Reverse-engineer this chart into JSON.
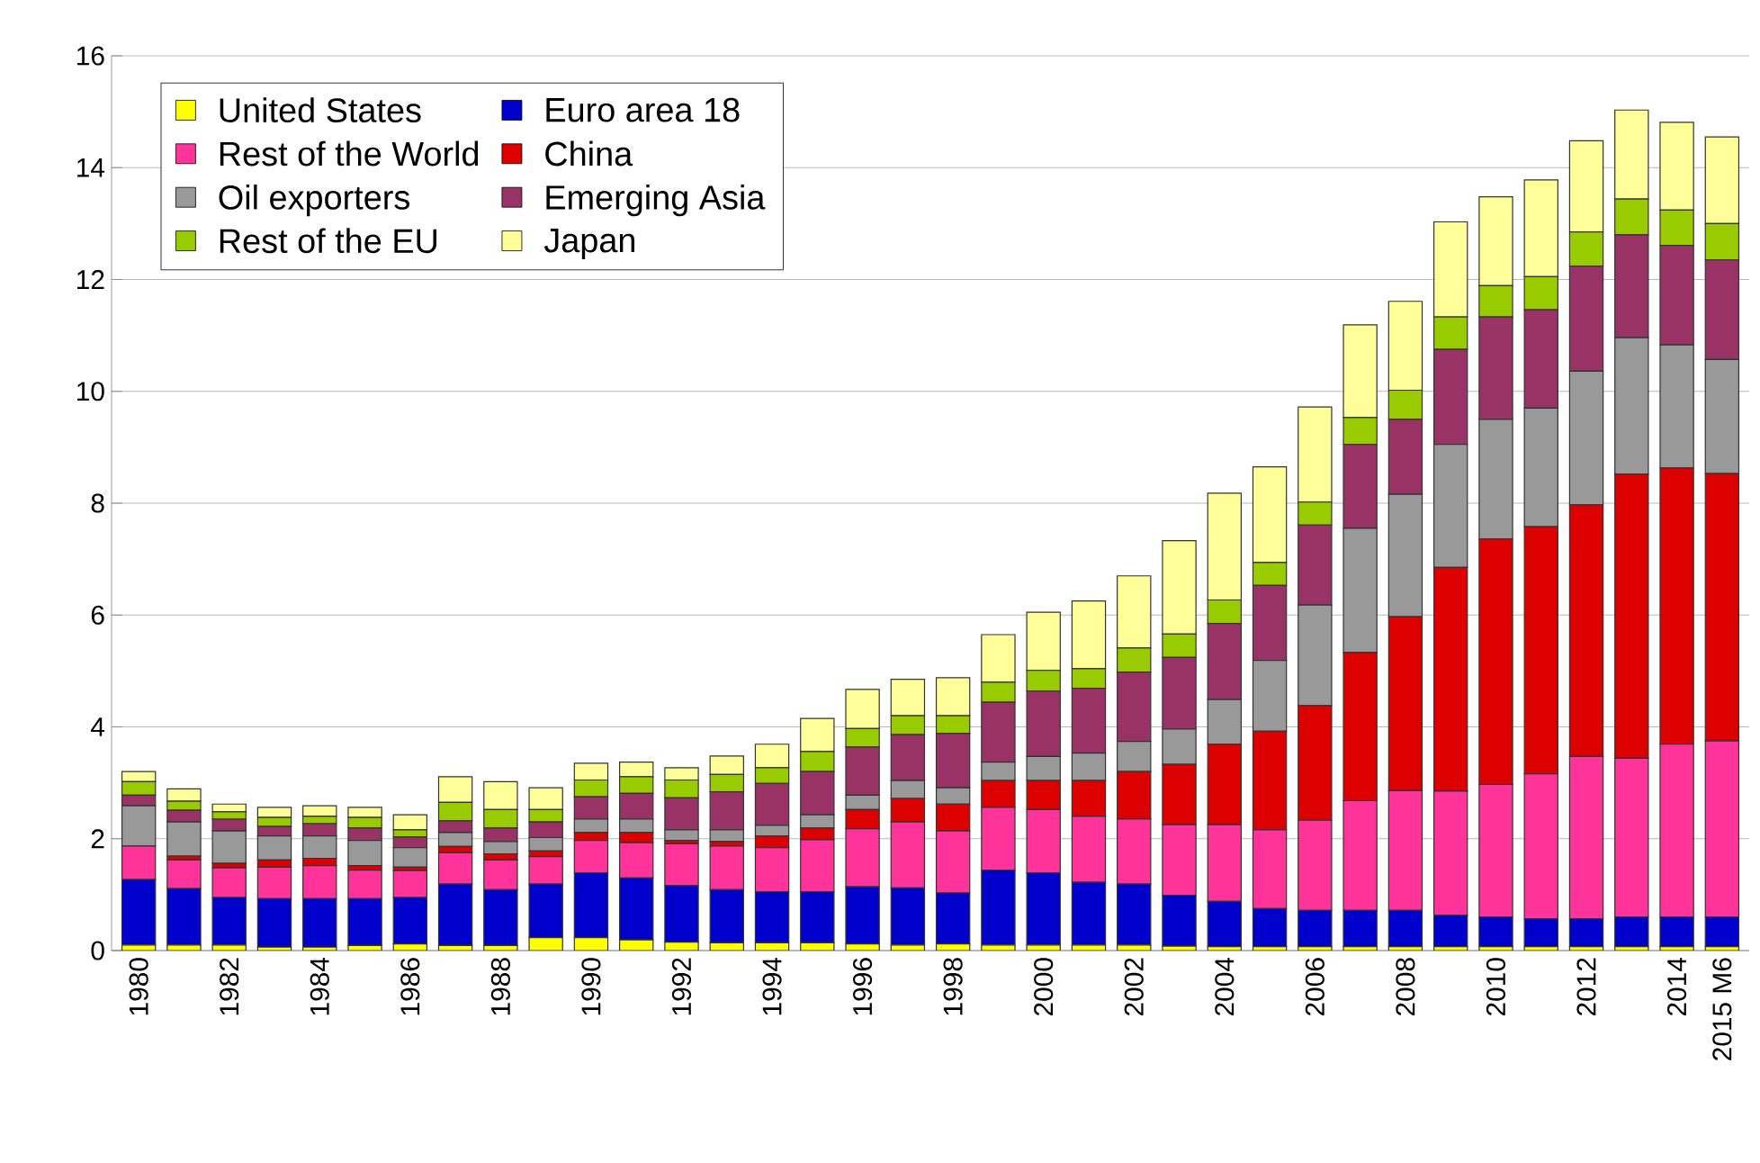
{
  "chart_data": {
    "type": "bar",
    "stacked": true,
    "grid": "y",
    "legend": "top left",
    "categories": [
      "1980",
      null,
      "1982",
      null,
      "1984",
      null,
      "1986",
      null,
      "1988",
      null,
      "1990",
      null,
      "1992",
      null,
      "1994",
      null,
      "1996",
      null,
      "1998",
      null,
      "2000",
      null,
      "2002",
      null,
      "2004",
      null,
      "2006",
      null,
      "2008",
      null,
      "2010",
      null,
      "2012",
      null,
      "2014",
      "2015 M6"
    ],
    "ylim": [
      0,
      16
    ],
    "yticks": [
      0,
      2,
      4,
      6,
      8,
      10,
      12,
      14,
      16
    ],
    "series": [
      {
        "name": "United States",
        "color": "#ffff00",
        "values": [
          0.1,
          0.1,
          0.1,
          0.06,
          0.06,
          0.09,
          0.12,
          0.09,
          0.09,
          0.23,
          0.23,
          0.19,
          0.15,
          0.14,
          0.14,
          0.14,
          0.12,
          0.1,
          0.12,
          0.1,
          0.1,
          0.1,
          0.1,
          0.08,
          0.07,
          0.07,
          0.07,
          0.07,
          0.07,
          0.07,
          0.07,
          0.07,
          0.07,
          0.07,
          0.07,
          0.07
        ]
      },
      {
        "name": "Euro area 18",
        "color": "#0000cc",
        "values": [
          1.17,
          1.01,
          0.85,
          0.87,
          0.87,
          0.84,
          0.83,
          1.1,
          1.0,
          0.96,
          1.16,
          1.11,
          1.01,
          0.95,
          0.91,
          0.91,
          1.02,
          1.02,
          0.91,
          1.34,
          1.29,
          1.12,
          1.09,
          0.91,
          0.81,
          0.68,
          0.65,
          0.65,
          0.65,
          0.56,
          0.53,
          0.5,
          0.5,
          0.53,
          0.53,
          0.53
        ]
      },
      {
        "name": "Rest of the World",
        "color": "#ff3399",
        "values": [
          0.6,
          0.51,
          0.53,
          0.56,
          0.59,
          0.51,
          0.48,
          0.56,
          0.53,
          0.49,
          0.58,
          0.63,
          0.75,
          0.78,
          0.79,
          0.93,
          1.04,
          1.18,
          1.11,
          1.12,
          1.13,
          1.18,
          1.16,
          1.26,
          1.37,
          1.41,
          1.61,
          1.96,
          2.14,
          2.22,
          2.37,
          2.59,
          2.9,
          2.84,
          3.09,
          3.15
        ]
      },
      {
        "name": "China",
        "color": "#dd0000",
        "values": [
          0,
          0.07,
          0.08,
          0.13,
          0.13,
          0.08,
          0.06,
          0.11,
          0.11,
          0.1,
          0.14,
          0.18,
          0.06,
          0.08,
          0.21,
          0.21,
          0.34,
          0.42,
          0.48,
          0.48,
          0.52,
          0.64,
          0.85,
          1.08,
          1.44,
          1.76,
          2.05,
          2.65,
          3.11,
          4.0,
          4.39,
          4.42,
          4.5,
          5.08,
          4.94,
          4.78
        ]
      },
      {
        "name": "Oil exporters",
        "color": "#999999",
        "values": [
          0.72,
          0.61,
          0.58,
          0.43,
          0.4,
          0.45,
          0.35,
          0.25,
          0.22,
          0.24,
          0.24,
          0.24,
          0.19,
          0.21,
          0.19,
          0.24,
          0.26,
          0.32,
          0.29,
          0.33,
          0.43,
          0.49,
          0.54,
          0.63,
          0.8,
          1.27,
          1.8,
          2.22,
          2.19,
          2.2,
          2.14,
          2.12,
          2.39,
          2.44,
          2.2,
          2.04
        ]
      },
      {
        "name": "Emerging Asia",
        "color": "#993366",
        "values": [
          0.19,
          0.21,
          0.21,
          0.17,
          0.22,
          0.22,
          0.19,
          0.21,
          0.24,
          0.28,
          0.4,
          0.46,
          0.57,
          0.68,
          0.75,
          0.77,
          0.86,
          0.82,
          0.97,
          1.07,
          1.17,
          1.16,
          1.24,
          1.28,
          1.36,
          1.34,
          1.43,
          1.5,
          1.34,
          1.7,
          1.83,
          1.76,
          1.88,
          1.84,
          1.78,
          1.78
        ]
      },
      {
        "name": "Rest of the EU",
        "color": "#99cc00",
        "values": [
          0.24,
          0.16,
          0.13,
          0.16,
          0.13,
          0.19,
          0.13,
          0.33,
          0.33,
          0.22,
          0.3,
          0.3,
          0.32,
          0.31,
          0.28,
          0.36,
          0.33,
          0.34,
          0.32,
          0.36,
          0.37,
          0.35,
          0.43,
          0.42,
          0.42,
          0.41,
          0.41,
          0.48,
          0.52,
          0.58,
          0.56,
          0.59,
          0.61,
          0.64,
          0.63,
          0.65
        ]
      },
      {
        "name": "Japan",
        "color": "#ffff99",
        "values": [
          0.18,
          0.22,
          0.14,
          0.18,
          0.19,
          0.18,
          0.27,
          0.46,
          0.5,
          0.39,
          0.3,
          0.26,
          0.22,
          0.33,
          0.42,
          0.59,
          0.7,
          0.65,
          0.68,
          0.85,
          1.04,
          1.21,
          1.29,
          1.67,
          1.91,
          1.71,
          1.7,
          1.66,
          1.59,
          1.7,
          1.59,
          1.73,
          1.63,
          1.59,
          1.57,
          1.55
        ]
      }
    ]
  }
}
